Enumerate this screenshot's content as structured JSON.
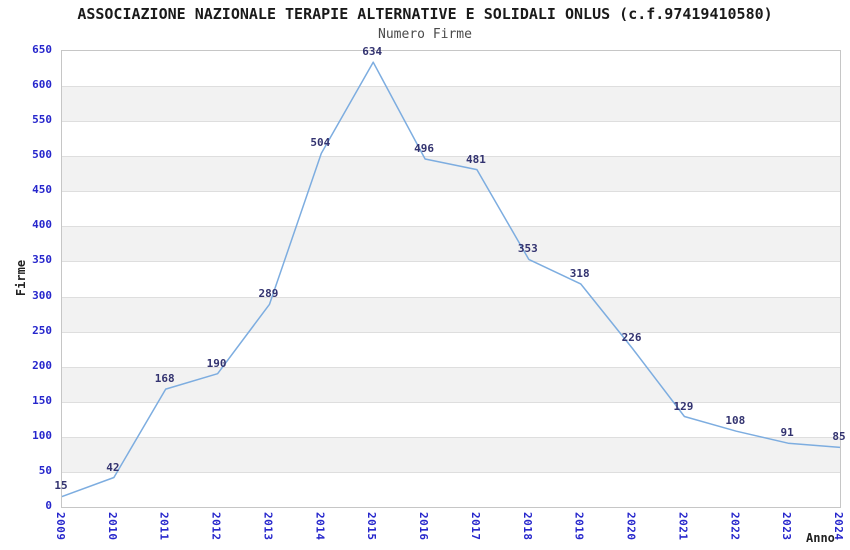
{
  "header": {
    "title": "ASSOCIAZIONE NAZIONALE TERAPIE ALTERNATIVE E SOLIDALI ONLUS (c.f.97419410580)",
    "subtitle": "Numero Firme"
  },
  "chart_data": {
    "type": "line",
    "title": "Numero Firme",
    "xlabel": "Anno",
    "ylabel": "Firme",
    "x": [
      "2009",
      "2010",
      "2011",
      "2012",
      "2013",
      "2014",
      "2015",
      "2016",
      "2017",
      "2018",
      "2019",
      "2020",
      "2021",
      "2022",
      "2023",
      "2024"
    ],
    "values": [
      15,
      42,
      168,
      190,
      289,
      504,
      634,
      496,
      481,
      353,
      318,
      226,
      129,
      108,
      91,
      85
    ],
    "point_labels": [
      "15",
      "42",
      "168",
      "190",
      "289",
      "504",
      "634",
      "496",
      "481",
      "353",
      "318",
      "226",
      "129",
      "108",
      "91",
      "85"
    ],
    "ylim": [
      0,
      650
    ],
    "ytick_step": 50,
    "yticks": [
      0,
      50,
      100,
      150,
      200,
      250,
      300,
      350,
      400,
      450,
      500,
      550,
      600,
      650
    ],
    "legend": "none",
    "grid": "horizontal gridlines with alternating gray bands",
    "markers": "none",
    "colors": {
      "line": "#7dade0",
      "axis_tick_text": "#2626cc",
      "point_label_text": "#333370",
      "band_gray": "#f2f2f2",
      "band_white": "#ffffff",
      "gridline": "#dedede",
      "plot_border": "#c6c6c6",
      "title_text": "#1a1a1a",
      "subtitle_text": "#4a4a4a",
      "axis_label_text": "#222222"
    }
  }
}
